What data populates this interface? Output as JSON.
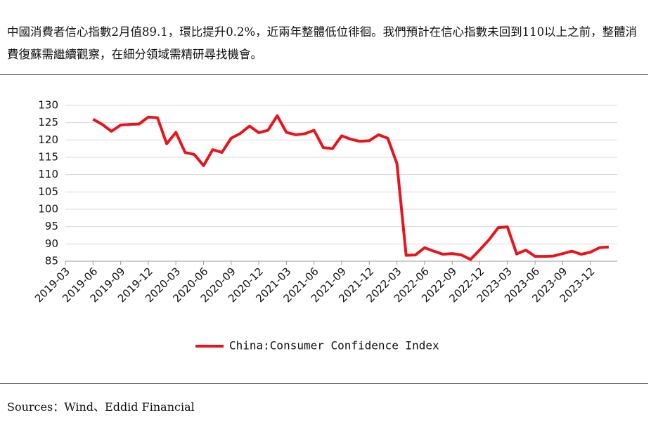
{
  "header": {
    "text": "中國消費者信心指數2月值89.1，環比提升0.2%，近兩年整體低位徘徊。我們預計在信心指數未回到110以上之前，整體消費復蘇需繼續觀察，在細分領域需精研尋找機會。"
  },
  "chart_data": {
    "type": "line",
    "categories": [
      "2019-03",
      null,
      null,
      "2019-06",
      null,
      null,
      "2019-09",
      null,
      null,
      "2019-12",
      null,
      null,
      "2020-03",
      null,
      null,
      "2020-06",
      null,
      null,
      "2020-09",
      null,
      null,
      "2020-12",
      null,
      null,
      "2021-03",
      null,
      null,
      "2021-06",
      null,
      null,
      "2021-09",
      null,
      null,
      "2021-12",
      null,
      null,
      "2022-03",
      null,
      null,
      "2022-06",
      null,
      null,
      "2022-09",
      null,
      null,
      "2022-12",
      null,
      null,
      "2023-03",
      null,
      null,
      "2023-06",
      null,
      null,
      "2023-09",
      null,
      null,
      "2023-12",
      null,
      null
    ],
    "series": [
      {
        "name": "China:Consumer Confidence Index",
        "color": "#e8141c",
        "values": [
          null,
          null,
          null,
          126,
          124.5,
          122.5,
          124.3,
          124.5,
          124.6,
          126.6,
          126.4,
          118.9,
          122.2,
          116.4,
          115.8,
          112.6,
          117.2,
          116.4,
          120.5,
          121.9,
          124.0,
          122.1,
          122.8,
          127.0,
          122.2,
          121.5,
          121.8,
          122.8,
          117.8,
          117.5,
          121.2,
          120.2,
          119.6,
          119.8,
          121.5,
          120.5,
          113.2,
          86.7,
          86.8,
          88.9,
          87.9,
          87.0,
          87.2,
          86.8,
          85.5,
          88.3,
          91.2,
          94.7,
          94.9,
          87.1,
          88.2,
          86.4,
          86.4,
          86.5,
          87.2,
          87.9,
          87.0,
          87.6,
          88.9,
          89.1
        ]
      }
    ],
    "ylim": [
      85,
      130
    ],
    "yticks": [
      85,
      90,
      95,
      100,
      105,
      110,
      115,
      120,
      125,
      130
    ],
    "grid": true
  },
  "source": "Sources：Wind、Eddid Financial"
}
